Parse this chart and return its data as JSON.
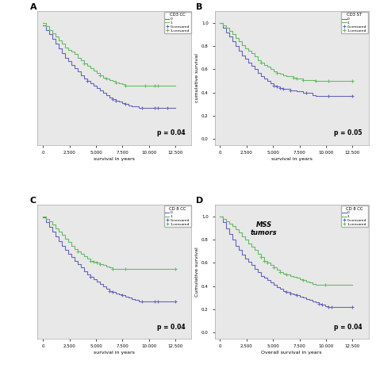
{
  "panels": [
    {
      "label": "A",
      "title": "CD3 CC",
      "xlabel": "survival in years",
      "ylabel": "",
      "p_value": "p = 0.04",
      "xlim": [
        -500,
        14000
      ],
      "ylim": [
        -0.05,
        1.1
      ],
      "xticks": [
        0,
        2500,
        5000,
        7500,
        10000,
        12500
      ],
      "yticks": [],
      "has_ylabel": false,
      "line0_color": "#6666bb",
      "line1_color": "#66bb66",
      "curve0_x": [
        0,
        300,
        600,
        900,
        1200,
        1500,
        1800,
        2100,
        2400,
        2700,
        3000,
        3300,
        3600,
        3900,
        4200,
        4500,
        4800,
        5100,
        5400,
        5700,
        6000,
        6300,
        6600,
        6900,
        7200,
        7500,
        7800,
        8100,
        8400,
        8700,
        9000,
        9300,
        9600,
        9900,
        10200,
        10500,
        10800,
        11100,
        11400,
        11700,
        12000,
        12500
      ],
      "curve0_y": [
        0.98,
        0.94,
        0.9,
        0.86,
        0.82,
        0.78,
        0.74,
        0.7,
        0.67,
        0.64,
        0.61,
        0.58,
        0.55,
        0.52,
        0.5,
        0.48,
        0.46,
        0.44,
        0.42,
        0.4,
        0.38,
        0.36,
        0.34,
        0.33,
        0.32,
        0.31,
        0.3,
        0.29,
        0.28,
        0.28,
        0.27,
        0.27,
        0.27,
        0.27,
        0.27,
        0.27,
        0.27,
        0.27,
        0.27,
        0.27,
        0.27,
        0.27
      ],
      "curve1_x": [
        0,
        300,
        600,
        900,
        1200,
        1500,
        1800,
        2100,
        2400,
        2700,
        3000,
        3300,
        3600,
        3900,
        4200,
        4500,
        4800,
        5100,
        5400,
        5700,
        6000,
        6300,
        6600,
        6900,
        7200,
        7500,
        7800,
        8100,
        8400,
        8700,
        9000,
        9300,
        9600,
        9900,
        10200,
        10500,
        10800,
        11100,
        11400,
        12500
      ],
      "curve1_y": [
        1.0,
        0.97,
        0.94,
        0.91,
        0.88,
        0.85,
        0.82,
        0.79,
        0.77,
        0.75,
        0.73,
        0.7,
        0.68,
        0.65,
        0.63,
        0.61,
        0.59,
        0.57,
        0.55,
        0.53,
        0.52,
        0.51,
        0.5,
        0.49,
        0.48,
        0.47,
        0.46,
        0.46,
        0.46,
        0.46,
        0.46,
        0.46,
        0.46,
        0.46,
        0.46,
        0.46,
        0.46,
        0.46,
        0.46,
        0.46
      ],
      "annotation": null
    },
    {
      "label": "B",
      "title": "CD3 ST",
      "xlabel": "survival in years",
      "ylabel": "cumulative survival",
      "p_value": "p = 0.05",
      "xlim": [
        -500,
        14000
      ],
      "ylim": [
        -0.05,
        1.1
      ],
      "xticks": [
        0,
        2500,
        5000,
        7500,
        10000,
        12500
      ],
      "yticks": [
        0.0,
        0.2,
        0.4,
        0.6,
        0.8,
        1.0
      ],
      "has_ylabel": true,
      "line0_color": "#6666bb",
      "line1_color": "#66bb66",
      "curve0_x": [
        0,
        300,
        600,
        900,
        1200,
        1500,
        1800,
        2100,
        2400,
        2700,
        3000,
        3300,
        3600,
        3900,
        4200,
        4500,
        4800,
        5100,
        5400,
        5700,
        6000,
        6300,
        6600,
        6900,
        7200,
        7500,
        7800,
        8100,
        8400,
        8700,
        9000,
        9300,
        9600,
        9900,
        10200,
        10500,
        10800,
        12500
      ],
      "curve0_y": [
        1.0,
        0.96,
        0.92,
        0.88,
        0.84,
        0.8,
        0.76,
        0.72,
        0.69,
        0.66,
        0.63,
        0.6,
        0.57,
        0.54,
        0.52,
        0.5,
        0.48,
        0.46,
        0.45,
        0.44,
        0.43,
        0.43,
        0.42,
        0.42,
        0.41,
        0.41,
        0.4,
        0.4,
        0.4,
        0.38,
        0.37,
        0.37,
        0.37,
        0.37,
        0.37,
        0.37,
        0.37,
        0.37
      ],
      "curve1_x": [
        0,
        300,
        600,
        900,
        1200,
        1500,
        1800,
        2100,
        2400,
        2700,
        3000,
        3300,
        3600,
        3900,
        4200,
        4500,
        4800,
        5100,
        5400,
        5700,
        6000,
        6300,
        6600,
        6900,
        7200,
        7500,
        7800,
        8100,
        8400,
        8700,
        9000,
        9300,
        9600,
        9900,
        10200,
        10500,
        10800,
        12500
      ],
      "curve1_y": [
        1.0,
        0.98,
        0.96,
        0.93,
        0.9,
        0.87,
        0.84,
        0.81,
        0.78,
        0.76,
        0.74,
        0.71,
        0.68,
        0.66,
        0.64,
        0.62,
        0.6,
        0.58,
        0.57,
        0.56,
        0.55,
        0.54,
        0.54,
        0.53,
        0.52,
        0.52,
        0.51,
        0.51,
        0.51,
        0.51,
        0.5,
        0.5,
        0.5,
        0.5,
        0.5,
        0.5,
        0.5,
        0.5
      ],
      "annotation": null
    },
    {
      "label": "C",
      "title": "CD 8 CC",
      "xlabel": "survival in years",
      "ylabel": "",
      "p_value": "p = 0.04",
      "xlim": [
        -500,
        14000
      ],
      "ylim": [
        -0.05,
        1.1
      ],
      "xticks": [
        0,
        2500,
        5000,
        7500,
        10000,
        12500
      ],
      "yticks": [],
      "has_ylabel": false,
      "line0_color": "#6666bb",
      "line1_color": "#66bb66",
      "curve0_x": [
        0,
        300,
        600,
        900,
        1200,
        1500,
        1800,
        2100,
        2400,
        2700,
        3000,
        3300,
        3600,
        3900,
        4200,
        4500,
        4800,
        5100,
        5400,
        5700,
        6000,
        6300,
        6600,
        6900,
        7200,
        7500,
        7800,
        8100,
        8400,
        8700,
        9000,
        9300,
        9600,
        9900,
        10200,
        10500,
        10800,
        11100,
        12500
      ],
      "curve0_y": [
        0.99,
        0.95,
        0.91,
        0.87,
        0.83,
        0.79,
        0.75,
        0.71,
        0.68,
        0.65,
        0.62,
        0.59,
        0.56,
        0.53,
        0.5,
        0.48,
        0.46,
        0.44,
        0.42,
        0.4,
        0.38,
        0.36,
        0.35,
        0.34,
        0.33,
        0.32,
        0.31,
        0.3,
        0.29,
        0.28,
        0.27,
        0.27,
        0.27,
        0.27,
        0.27,
        0.27,
        0.27,
        0.27,
        0.27
      ],
      "curve1_x": [
        0,
        300,
        600,
        900,
        1200,
        1500,
        1800,
        2100,
        2400,
        2700,
        3000,
        3300,
        3600,
        3900,
        4200,
        4500,
        4800,
        5100,
        5400,
        5700,
        6000,
        6300,
        6600,
        6900,
        7200,
        7500,
        7800,
        8100,
        8400,
        8700,
        9000,
        9300,
        9600,
        12500
      ],
      "curve1_y": [
        1.0,
        0.98,
        0.96,
        0.93,
        0.9,
        0.87,
        0.84,
        0.81,
        0.78,
        0.75,
        0.72,
        0.7,
        0.68,
        0.66,
        0.64,
        0.62,
        0.61,
        0.6,
        0.59,
        0.58,
        0.57,
        0.56,
        0.55,
        0.55,
        0.55,
        0.55,
        0.55,
        0.55,
        0.55,
        0.55,
        0.55,
        0.55,
        0.55,
        0.55
      ],
      "annotation": null
    },
    {
      "label": "D",
      "title": "CD 8 CC",
      "xlabel": "Overall survival in years",
      "ylabel": "Cumulative survival",
      "p_value": "p = 0.04",
      "xlim": [
        -500,
        14000
      ],
      "ylim": [
        -0.05,
        1.1
      ],
      "xticks": [
        0,
        2500,
        5000,
        7500,
        10000,
        12500
      ],
      "yticks": [
        0.0,
        0.2,
        0.4,
        0.6,
        0.8,
        1.0
      ],
      "has_ylabel": true,
      "line0_color": "#6666bb",
      "line1_color": "#66bb66",
      "curve0_x": [
        0,
        300,
        600,
        900,
        1200,
        1500,
        1800,
        2100,
        2400,
        2700,
        3000,
        3300,
        3600,
        3900,
        4200,
        4500,
        4800,
        5100,
        5400,
        5700,
        6000,
        6300,
        6600,
        6900,
        7200,
        7500,
        7800,
        8100,
        8400,
        8700,
        9000,
        9300,
        9600,
        9900,
        10200,
        10500,
        10800,
        12500
      ],
      "curve0_y": [
        1.0,
        0.95,
        0.9,
        0.85,
        0.8,
        0.75,
        0.71,
        0.67,
        0.64,
        0.61,
        0.58,
        0.55,
        0.52,
        0.49,
        0.47,
        0.45,
        0.43,
        0.41,
        0.39,
        0.38,
        0.36,
        0.35,
        0.34,
        0.33,
        0.32,
        0.31,
        0.3,
        0.29,
        0.28,
        0.27,
        0.26,
        0.25,
        0.24,
        0.23,
        0.22,
        0.22,
        0.22,
        0.22
      ],
      "curve1_x": [
        0,
        300,
        600,
        900,
        1200,
        1500,
        1800,
        2100,
        2400,
        2700,
        3000,
        3300,
        3600,
        3900,
        4200,
        4500,
        4800,
        5100,
        5400,
        5700,
        6000,
        6300,
        6600,
        6900,
        7200,
        7500,
        7800,
        8100,
        8400,
        8700,
        9000,
        9300,
        9600,
        9900,
        10200,
        10500,
        10800,
        12500
      ],
      "curve1_y": [
        1.0,
        0.98,
        0.96,
        0.94,
        0.92,
        0.89,
        0.86,
        0.83,
        0.8,
        0.77,
        0.74,
        0.71,
        0.68,
        0.65,
        0.62,
        0.6,
        0.58,
        0.56,
        0.54,
        0.52,
        0.51,
        0.5,
        0.49,
        0.48,
        0.47,
        0.46,
        0.45,
        0.44,
        0.43,
        0.42,
        0.41,
        0.41,
        0.41,
        0.41,
        0.41,
        0.41,
        0.41,
        0.41
      ],
      "annotation": "MSS\ntumors"
    }
  ],
  "bg_color": "#e8e8e8",
  "fig_bg": "#ffffff",
  "legend_labels": [
    "0",
    "1",
    "0-censored",
    "1-censored"
  ]
}
